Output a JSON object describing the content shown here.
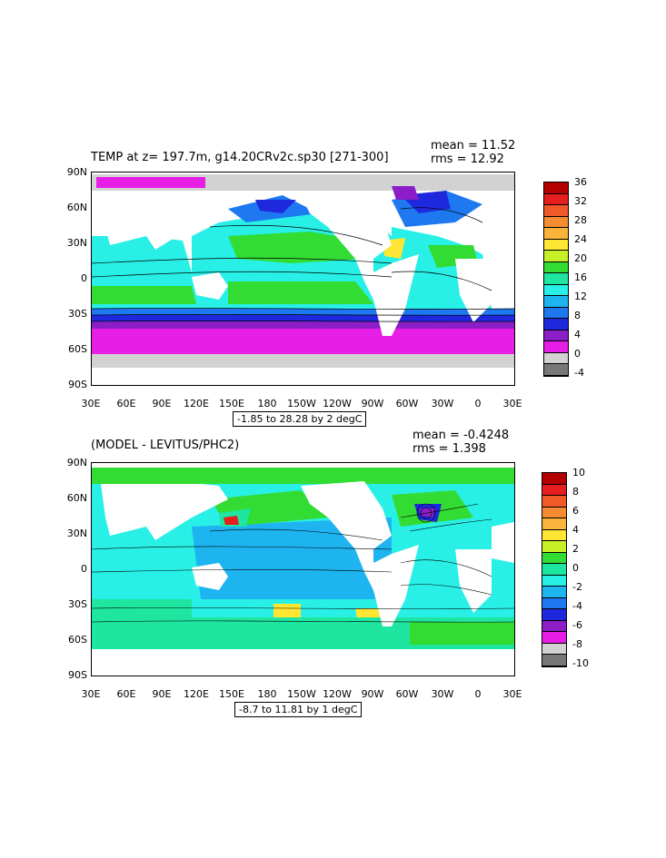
{
  "top_panel": {
    "title": "TEMP at z= 197.7m, g14.20CRv2c.sp30 [271-300]",
    "mean_label": "mean = 11.52",
    "rms_label": "rms = 12.92",
    "range_label": "-1.85 to 28.28 by 2 degC",
    "lat_labels": [
      "90N",
      "60N",
      "30N",
      "0",
      "30S",
      "60S",
      "90S"
    ],
    "lon_labels": [
      "30E",
      "60E",
      "90E",
      "120E",
      "150E",
      "180",
      "150W",
      "120W",
      "90W",
      "60W",
      "30W",
      "0",
      "30E"
    ],
    "colorbar": {
      "labels": [
        "36",
        "32",
        "28",
        "24",
        "20",
        "16",
        "12",
        "8",
        "4",
        "0",
        "-4"
      ],
      "colors": [
        "#b40000",
        "#e61e1e",
        "#f05a28",
        "#f58c32",
        "#fab43c",
        "#ffe632",
        "#c8f028",
        "#32dc32",
        "#1ee6a0",
        "#28f0e6",
        "#1eb4f0",
        "#1e78f0",
        "#1e28dc",
        "#8c1ec8",
        "#e61ee6",
        "#d2d2d2",
        "#787878"
      ]
    }
  },
  "bottom_panel": {
    "title": "(MODEL - LEVITUS/PHC2)",
    "mean_label": "mean = -0.4248",
    "rms_label": "rms = 1.398",
    "range_label": "-8.7 to 11.81 by 1 degC",
    "lat_labels": [
      "90N",
      "60N",
      "30N",
      "0",
      "30S",
      "60S",
      "90S"
    ],
    "lon_labels": [
      "30E",
      "60E",
      "90E",
      "120E",
      "150E",
      "180",
      "150W",
      "120W",
      "90W",
      "60W",
      "30W",
      "0",
      "30E"
    ],
    "colorbar": {
      "labels": [
        "10",
        "8",
        "6",
        "4",
        "2",
        "0",
        "-2",
        "-4",
        "-6",
        "-8",
        "-10"
      ],
      "colors": [
        "#b40000",
        "#e61e1e",
        "#f05a28",
        "#f58c32",
        "#fab43c",
        "#ffe632",
        "#c8f028",
        "#32dc32",
        "#1ee6a0",
        "#28f0e6",
        "#1eb4f0",
        "#1e78f0",
        "#1e28dc",
        "#8c1ec8",
        "#e61ee6",
        "#d2d2d2",
        "#787878"
      ]
    }
  }
}
